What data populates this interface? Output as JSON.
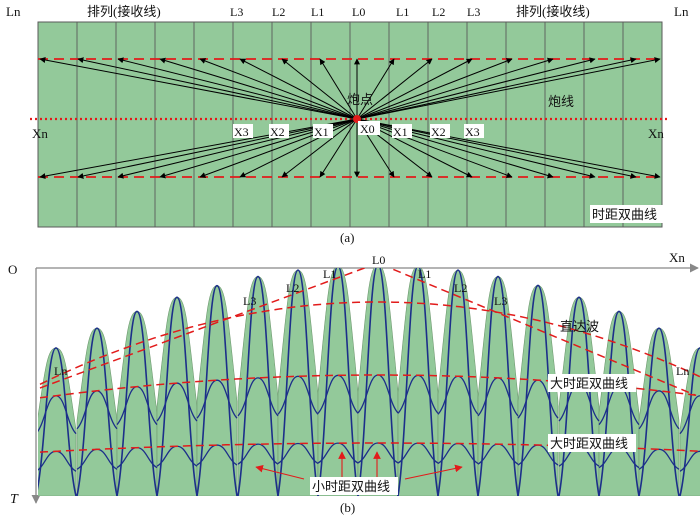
{
  "panel_a": {
    "top_labels": [
      "Ln",
      "排列(接收线)",
      "L3",
      "L2",
      "L1",
      "L0",
      "L1",
      "L2",
      "L3",
      "排列(接收线)",
      "Ln"
    ],
    "shot_label": "炮点",
    "shot_line_label": "炮线",
    "x_labels": [
      "Xn",
      "X3",
      "X2",
      "X1",
      "X0",
      "X1",
      "X2",
      "X3",
      "Xn"
    ],
    "hyperbola_label": "时距双曲线",
    "caption": "(a)",
    "num_columns": 16,
    "colors": {
      "fill": "#93c99a",
      "border": "#5a5a5a",
      "red": "#e21b1b",
      "arrow": "#000000"
    }
  },
  "panel_b": {
    "origin_label": "O",
    "x_axis_label": "Xn",
    "t_axis_label": "T",
    "trace_labels": [
      "Ln",
      "L3",
      "L2",
      "L1",
      "L0",
      "L1",
      "L2",
      "L3",
      "Ln"
    ],
    "direct_wave_label": "直达波",
    "large_hyperbola_label_1": "大时距双曲线",
    "large_hyperbola_label_2": "大时距双曲线",
    "small_hyperbola_label": "小时距双曲线",
    "caption": "(b)",
    "colors": {
      "fill": "#93c99a",
      "curve": "#1c2f8a",
      "red": "#e21b1b"
    }
  }
}
